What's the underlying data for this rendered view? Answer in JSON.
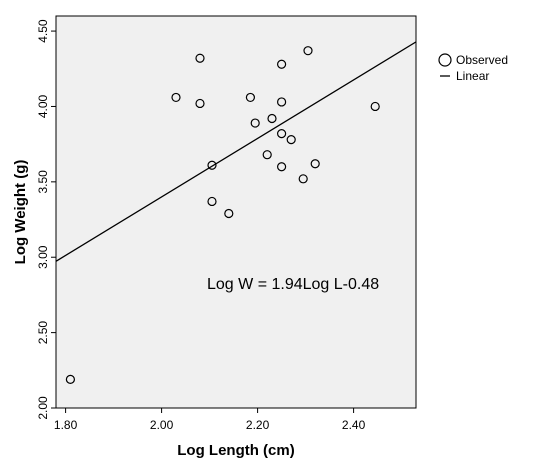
{
  "chart_data": {
    "type": "scatter",
    "xlabel": "Log Length (cm)",
    "ylabel": "Log Weight (g)",
    "xlim": [
      1.78,
      2.53
    ],
    "ylim": [
      2.0,
      4.6
    ],
    "xticks": [
      "1.80",
      "2.00",
      "2.20",
      "2.40"
    ],
    "yticks": [
      "2.00",
      "2.50",
      "3.00",
      "3.50",
      "4.00",
      "4.50"
    ],
    "xtick_values": [
      1.8,
      2.0,
      2.2,
      2.4
    ],
    "ytick_values": [
      2.0,
      2.5,
      3.0,
      3.5,
      4.0,
      4.5
    ],
    "background": "#f0f0f0",
    "grid": false,
    "legend_position": "top-right",
    "series": [
      {
        "name": "Observed",
        "kind": "points",
        "x": [
          1.81,
          2.03,
          2.08,
          2.08,
          2.105,
          2.105,
          2.14,
          2.185,
          2.195,
          2.22,
          2.23,
          2.25,
          2.25,
          2.25,
          2.25,
          2.27,
          2.295,
          2.305,
          2.32,
          2.445
        ],
        "y": [
          2.19,
          4.06,
          4.32,
          4.02,
          3.61,
          3.37,
          3.29,
          4.06,
          3.89,
          3.68,
          3.92,
          4.28,
          4.03,
          3.82,
          3.6,
          3.78,
          3.52,
          4.37,
          3.62,
          4.0
        ]
      },
      {
        "name": "Linear",
        "kind": "line",
        "slope": 1.94,
        "intercept": -0.48
      }
    ],
    "annotation": "Log W = 1.94Log L-0.48"
  }
}
